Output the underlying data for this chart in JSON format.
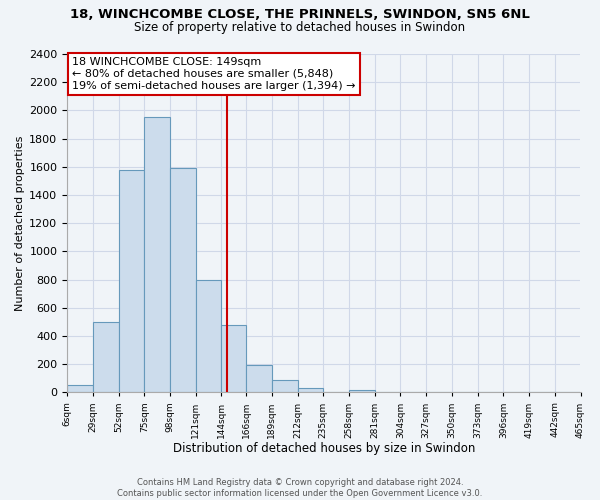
{
  "title": "18, WINCHCOMBE CLOSE, THE PRINNELS, SWINDON, SN5 6NL",
  "subtitle": "Size of property relative to detached houses in Swindon",
  "xlabel": "Distribution of detached houses by size in Swindon",
  "ylabel": "Number of detached properties",
  "bar_color": "#ccdcec",
  "bar_edge_color": "#6699bb",
  "bin_edges": [
    6,
    29,
    52,
    75,
    98,
    121,
    144,
    166,
    189,
    212,
    235,
    258,
    281,
    304,
    327,
    350,
    373,
    396,
    419,
    442,
    465
  ],
  "bin_heights": [
    55,
    500,
    1580,
    1950,
    1595,
    800,
    480,
    195,
    90,
    30,
    0,
    15,
    0,
    0,
    0,
    0,
    0,
    0,
    0,
    0
  ],
  "tick_labels": [
    "6sqm",
    "29sqm",
    "52sqm",
    "75sqm",
    "98sqm",
    "121sqm",
    "144sqm",
    "166sqm",
    "189sqm",
    "212sqm",
    "235sqm",
    "258sqm",
    "281sqm",
    "304sqm",
    "327sqm",
    "350sqm",
    "373sqm",
    "396sqm",
    "419sqm",
    "442sqm",
    "465sqm"
  ],
  "ylim": [
    0,
    2400
  ],
  "yticks": [
    0,
    200,
    400,
    600,
    800,
    1000,
    1200,
    1400,
    1600,
    1800,
    2000,
    2200,
    2400
  ],
  "property_line_x": 149,
  "annotation_line1": "18 WINCHCOMBE CLOSE: 149sqm",
  "annotation_line2": "← 80% of detached houses are smaller (5,848)",
  "annotation_line3": "19% of semi-detached houses are larger (1,394) →",
  "footer_line1": "Contains HM Land Registry data © Crown copyright and database right 2024.",
  "footer_line2": "Contains public sector information licensed under the Open Government Licence v3.0.",
  "grid_color": "#d0d8e8",
  "line_color": "#cc0000",
  "background_color": "#f0f4f8",
  "title_fontsize": 9.5,
  "subtitle_fontsize": 8.5,
  "xlabel_fontsize": 8.5,
  "ylabel_fontsize": 8.0,
  "ytick_fontsize": 8.0,
  "xtick_fontsize": 6.5,
  "annotation_fontsize": 8.0,
  "footer_fontsize": 6.0
}
